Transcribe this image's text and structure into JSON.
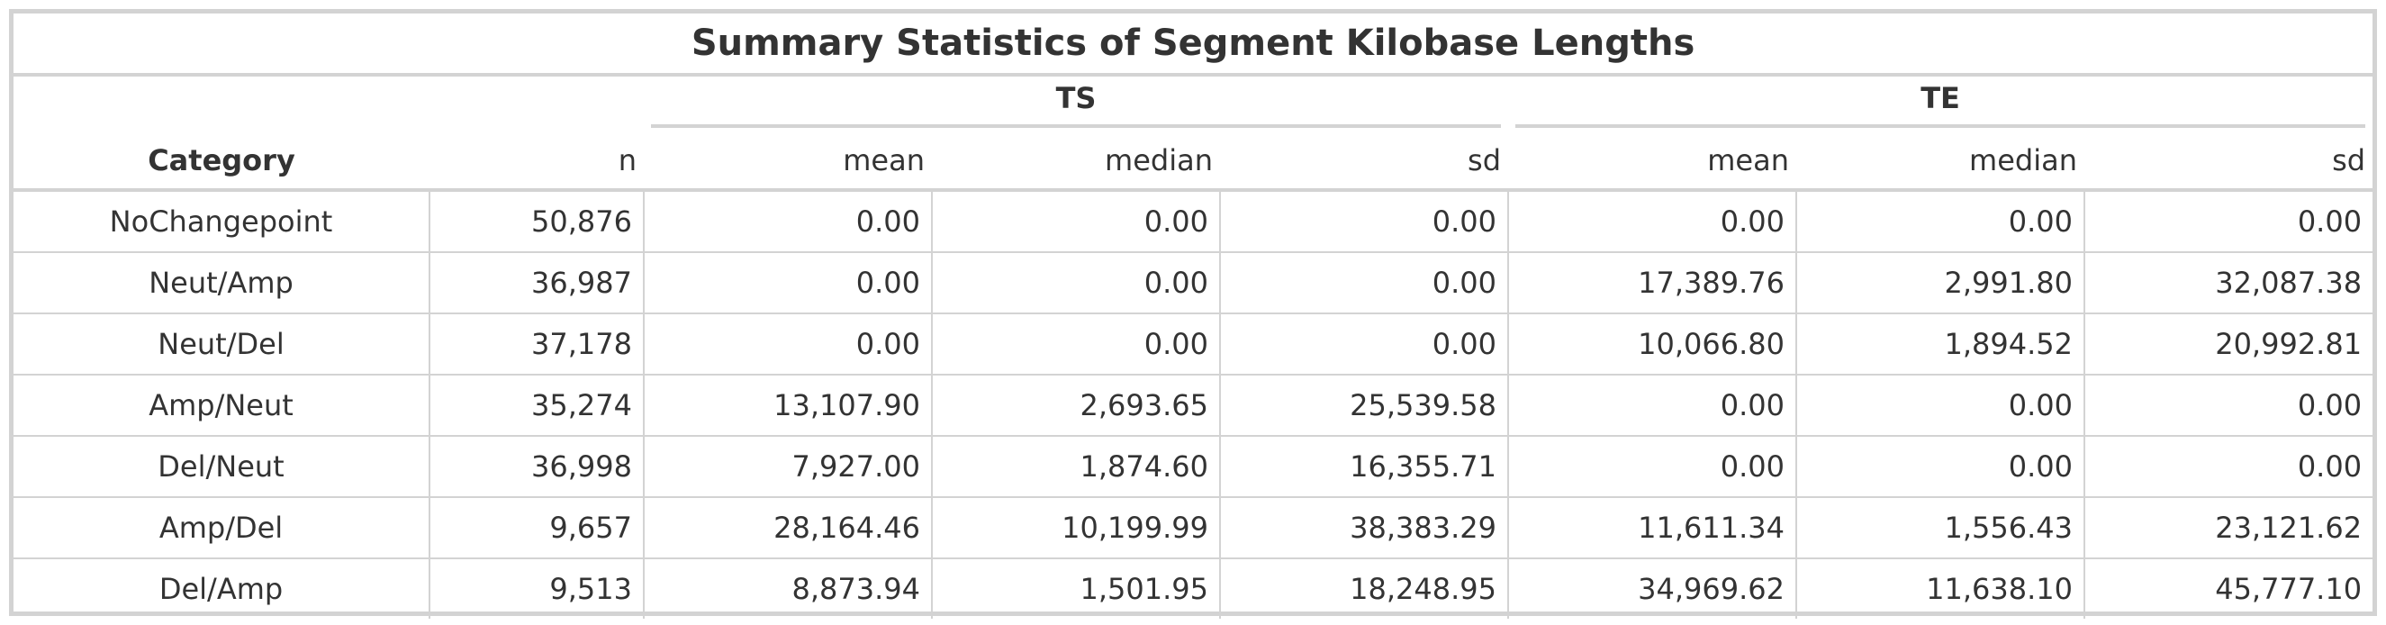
{
  "title": "Summary Statistics of Segment Kilobase Lengths",
  "spanners": {
    "ts": "TS",
    "te": "TE"
  },
  "columns": {
    "category": "Category",
    "n": "n",
    "ts_mean": "mean",
    "ts_median": "median",
    "ts_sd": "sd",
    "te_mean": "mean",
    "te_median": "median",
    "te_sd": "sd"
  },
  "rows": [
    {
      "category": "NoChangepoint",
      "n": "50,876",
      "ts_mean": "0.00",
      "ts_median": "0.00",
      "ts_sd": "0.00",
      "te_mean": "0.00",
      "te_median": "0.00",
      "te_sd": "0.00"
    },
    {
      "category": "Neut/Amp",
      "n": "36,987",
      "ts_mean": "0.00",
      "ts_median": "0.00",
      "ts_sd": "0.00",
      "te_mean": "17,389.76",
      "te_median": "2,991.80",
      "te_sd": "32,087.38"
    },
    {
      "category": "Neut/Del",
      "n": "37,178",
      "ts_mean": "0.00",
      "ts_median": "0.00",
      "ts_sd": "0.00",
      "te_mean": "10,066.80",
      "te_median": "1,894.52",
      "te_sd": "20,992.81"
    },
    {
      "category": "Amp/Neut",
      "n": "35,274",
      "ts_mean": "13,107.90",
      "ts_median": "2,693.65",
      "ts_sd": "25,539.58",
      "te_mean": "0.00",
      "te_median": "0.00",
      "te_sd": "0.00"
    },
    {
      "category": "Del/Neut",
      "n": "36,998",
      "ts_mean": "7,927.00",
      "ts_median": "1,874.60",
      "ts_sd": "16,355.71",
      "te_mean": "0.00",
      "te_median": "0.00",
      "te_sd": "0.00"
    },
    {
      "category": "Amp/Del",
      "n": "9,657",
      "ts_mean": "28,164.46",
      "ts_median": "10,199.99",
      "ts_sd": "38,383.29",
      "te_mean": "11,611.34",
      "te_median": "1,556.43",
      "te_sd": "23,121.62"
    },
    {
      "category": "Del/Amp",
      "n": "9,513",
      "ts_mean": "8,873.94",
      "ts_median": "1,501.95",
      "ts_sd": "18,248.95",
      "te_mean": "34,969.62",
      "te_median": "11,638.10",
      "te_sd": "45,777.10"
    }
  ]
}
